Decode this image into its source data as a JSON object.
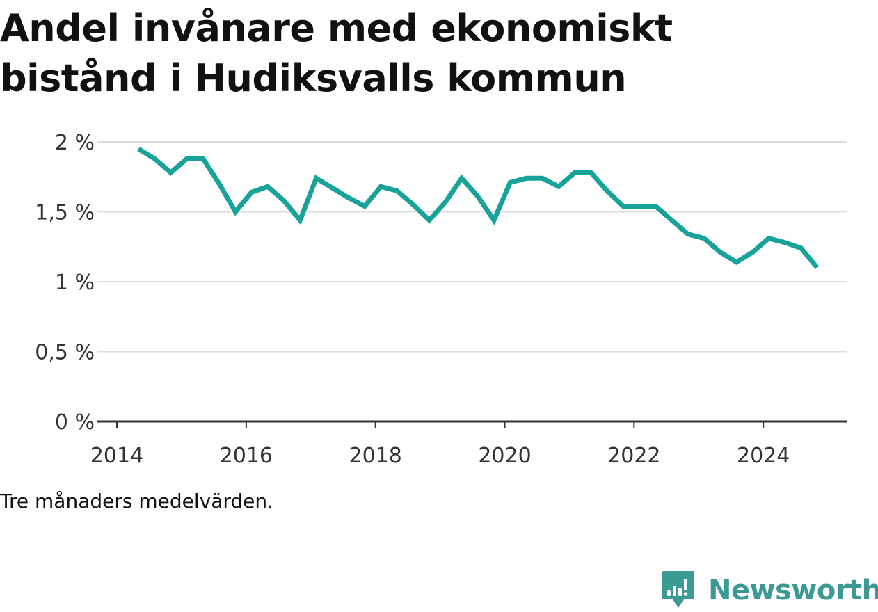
{
  "title": {
    "line1": "Andel invånare med ekonomiskt",
    "line2": "bistånd i Hudiksvalls kommun"
  },
  "note": "Tre månaders medelvärden.",
  "brand": {
    "name": "Newsworthy",
    "icon": "newsworthy-logo-icon",
    "color": "#3c9a94"
  },
  "colors": {
    "line": "#17a39a",
    "grid": "#dddddd",
    "axis": "#333333"
  },
  "chart_data": {
    "type": "line",
    "title": "Andel invånare med ekonomiskt bistånd i Hudiksvalls kommun",
    "xlabel": "",
    "ylabel": "",
    "x_ticks": [
      "2014",
      "2016",
      "2018",
      "2020",
      "2022",
      "2024"
    ],
    "y_ticks": [
      "0 %",
      "0,5 %",
      "1 %",
      "1,5 %",
      "2 %"
    ],
    "xlim": [
      2014,
      2025.3
    ],
    "ylim": [
      0,
      2
    ],
    "grid": "horizontal",
    "legend": "none",
    "series": [
      {
        "x": [
          "2014-05",
          "2014-08",
          "2014-11",
          "2015-02",
          "2015-05",
          "2015-08",
          "2015-11",
          "2016-02",
          "2016-05",
          "2016-08",
          "2016-11",
          "2017-02",
          "2017-05",
          "2017-08",
          "2017-11",
          "2018-02",
          "2018-05",
          "2018-08",
          "2018-11",
          "2019-02",
          "2019-05",
          "2019-08",
          "2019-11",
          "2020-02",
          "2020-05",
          "2020-08",
          "2020-11",
          "2021-02",
          "2021-05",
          "2021-08",
          "2021-11",
          "2022-02",
          "2022-05",
          "2022-08",
          "2022-11",
          "2023-02",
          "2023-05",
          "2023-08",
          "2023-11",
          "2024-02",
          "2024-05",
          "2024-08",
          "2024-11"
        ],
        "values": [
          1.95,
          1.88,
          1.78,
          1.88,
          1.88,
          1.7,
          1.5,
          1.64,
          1.68,
          1.58,
          1.44,
          1.74,
          1.67,
          1.6,
          1.54,
          1.68,
          1.65,
          1.55,
          1.44,
          1.57,
          1.74,
          1.61,
          1.44,
          1.71,
          1.74,
          1.74,
          1.68,
          1.78,
          1.78,
          1.65,
          1.54,
          1.54,
          1.54,
          1.44,
          1.34,
          1.31,
          1.21,
          1.14,
          1.21,
          1.31,
          1.28,
          1.24,
          1.1
        ]
      }
    ]
  }
}
